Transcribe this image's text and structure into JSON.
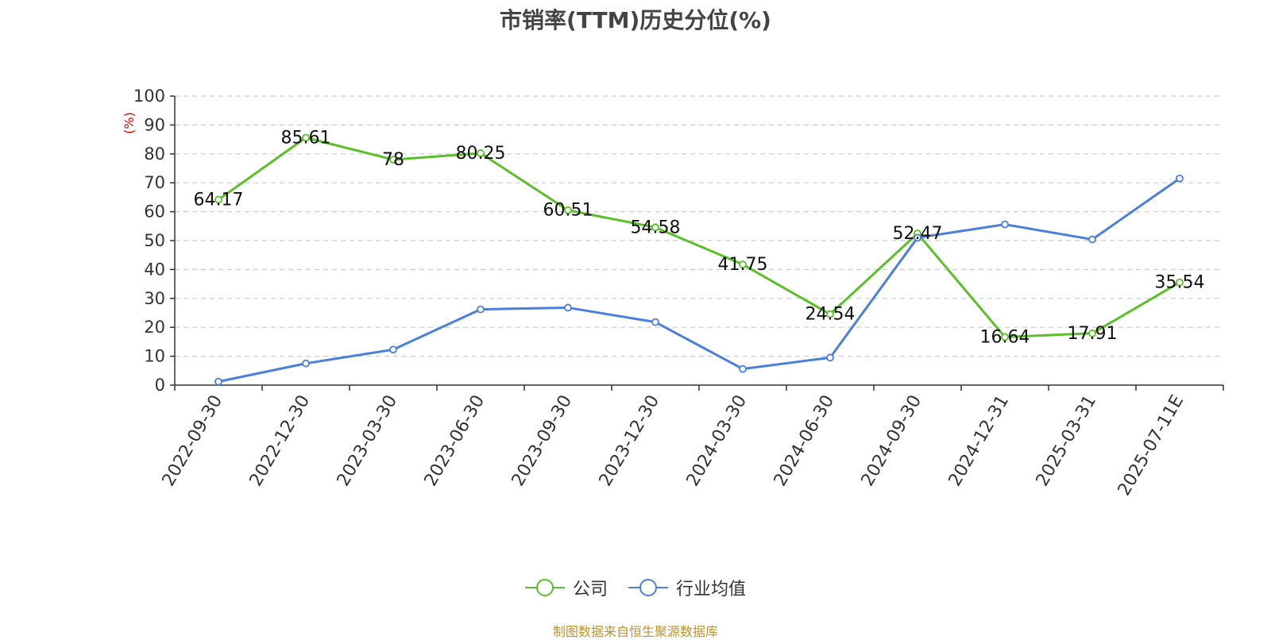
{
  "title": "市销率(TTM)历史分位(%)",
  "source_text": "制图数据来自恒生聚源数据库",
  "colors": {
    "company": "#5cbf2a",
    "industry": "#4a7fdb",
    "axis": "#333333",
    "grid": "#cccccc",
    "unit": "#e00000"
  },
  "chart_data": {
    "type": "line",
    "title": "市销率(TTM)历史分位(%)",
    "ylabel": "(%)",
    "xlabel": "",
    "ylim": [
      0,
      100
    ],
    "yticks": [
      0,
      10,
      20,
      30,
      40,
      50,
      60,
      70,
      80,
      90,
      100
    ],
    "grid": true,
    "legend_position": "bottom",
    "categories": [
      "2022-09-30",
      "2022-12-30",
      "2023-03-30",
      "2023-06-30",
      "2023-09-30",
      "2023-12-30",
      "2024-03-30",
      "2024-06-30",
      "2024-09-30",
      "2024-12-31",
      "2025-03-31",
      "2025-07-11E"
    ],
    "series": [
      {
        "name": "公司",
        "values": [
          64.17,
          85.61,
          78,
          80.25,
          60.51,
          54.58,
          41.75,
          24.54,
          52.47,
          16.64,
          17.91,
          35.54
        ],
        "labels": [
          "64.17",
          "85.61",
          "78",
          "80.25",
          "60.51",
          "54.58",
          "41.75",
          "24.54",
          "52.47",
          "16.64",
          "17.91",
          "35.54"
        ]
      },
      {
        "name": "行业均值",
        "values": [
          1.2,
          7.5,
          12.3,
          26.2,
          26.8,
          21.8,
          5.6,
          9.5,
          51.0,
          55.6,
          50.4,
          71.5
        ]
      }
    ]
  }
}
